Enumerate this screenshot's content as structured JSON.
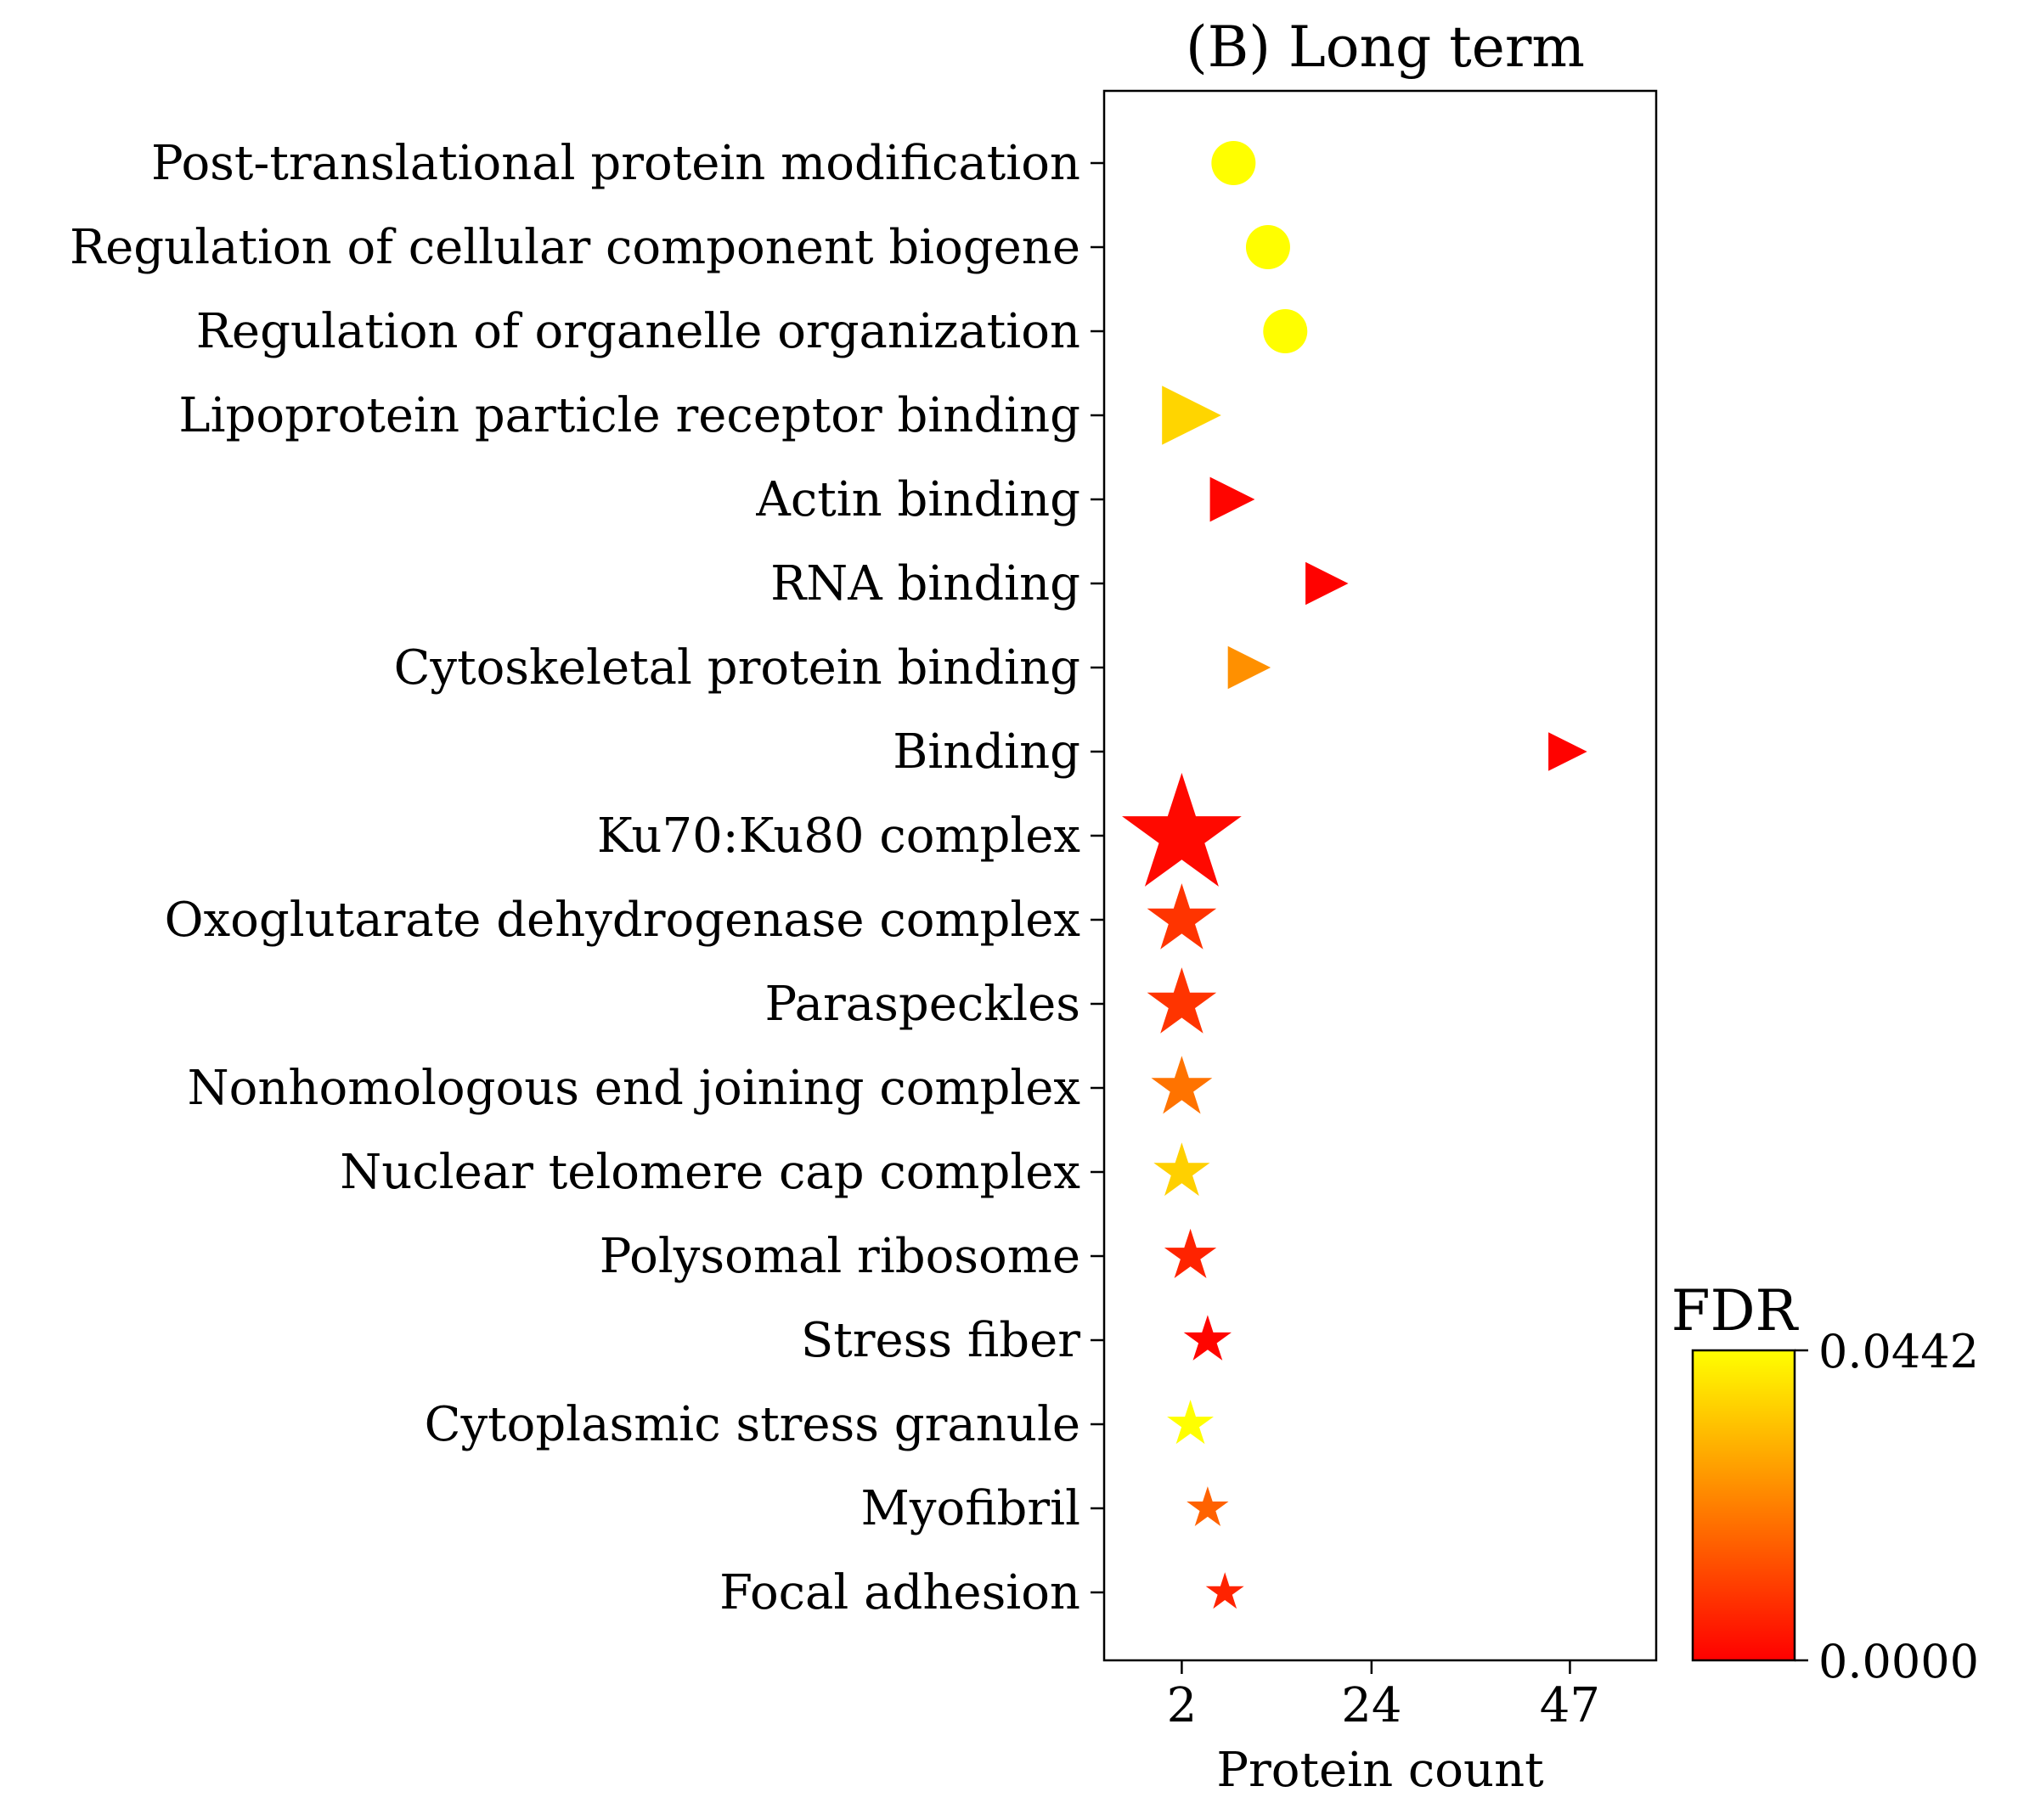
{
  "chart_data": {
    "type": "scatter",
    "title": "(B) Long term",
    "xlabel": "Protein count",
    "ylabel": "",
    "xticks": [
      2,
      24,
      47
    ],
    "xlim": [
      -7,
      57
    ],
    "grid": false,
    "categories": [
      "Post-translational protein modification",
      "Regulation of cellular component biogene",
      "Regulation of organelle organization",
      "Lipoprotein particle receptor binding",
      "Actin binding",
      "RNA binding",
      "Cytoskeletal protein binding",
      "Binding",
      "Ku70:Ku80 complex",
      "Oxoglutarate dehydrogenase complex",
      "Paraspeckles",
      "Nonhomologous end joining complex",
      "Nuclear telomere cap complex",
      "Polysomal ribosome",
      "Stress fiber",
      "Cytoplasmic stress granule",
      "Myofibril",
      "Focal adhesion"
    ],
    "points": [
      {
        "category": "Post-translational protein modification",
        "x": 8,
        "fdr": 0.0442,
        "marker": "circle",
        "size": 1.0
      },
      {
        "category": "Regulation of cellular component biogene",
        "x": 12,
        "fdr": 0.044,
        "marker": "circle",
        "size": 1.0
      },
      {
        "category": "Regulation of organelle organization",
        "x": 14,
        "fdr": 0.044,
        "marker": "circle",
        "size": 1.0
      },
      {
        "category": "Lipoprotein particle receptor binding",
        "x": 2,
        "fdr": 0.037,
        "marker": "triangle-right",
        "size": 1.45
      },
      {
        "category": "Actin binding",
        "x": 7,
        "fdr": 0.0008,
        "marker": "triangle-right",
        "size": 1.1
      },
      {
        "category": "RNA binding",
        "x": 18,
        "fdr": 0.0004,
        "marker": "triangle-right",
        "size": 1.05
      },
      {
        "category": "Cytoskeletal protein binding",
        "x": 9,
        "fdr": 0.025,
        "marker": "triangle-right",
        "size": 1.05
      },
      {
        "category": "Binding",
        "x": 46,
        "fdr": 0.0004,
        "marker": "triangle-right",
        "size": 0.95
      },
      {
        "category": "Ku70:Ku80 complex",
        "x": 2,
        "fdr": 0.0015,
        "marker": "star",
        "size": 2.0
      },
      {
        "category": "Oxoglutarate dehydrogenase complex",
        "x": 2,
        "fdr": 0.009,
        "marker": "star",
        "size": 1.16
      },
      {
        "category": "Paraspeckles",
        "x": 2,
        "fdr": 0.009,
        "marker": "star",
        "size": 1.16
      },
      {
        "category": "Nonhomologous end joining complex",
        "x": 2,
        "fdr": 0.02,
        "marker": "star",
        "size": 1.02
      },
      {
        "category": "Nuclear telomere cap complex",
        "x": 2,
        "fdr": 0.036,
        "marker": "star",
        "size": 0.94
      },
      {
        "category": "Polysomal ribosome",
        "x": 3,
        "fdr": 0.006,
        "marker": "star",
        "size": 0.87
      },
      {
        "category": "Stress fiber",
        "x": 5,
        "fdr": 0.0008,
        "marker": "star",
        "size": 0.8
      },
      {
        "category": "Cytoplasmic stress granule",
        "x": 3,
        "fdr": 0.0442,
        "marker": "star",
        "size": 0.78
      },
      {
        "category": "Myofibril",
        "x": 5,
        "fdr": 0.017,
        "marker": "star",
        "size": 0.7
      },
      {
        "category": "Focal adhesion",
        "x": 7,
        "fdr": 0.006,
        "marker": "star",
        "size": 0.64
      }
    ],
    "colorbar": {
      "title": "FDR",
      "min": 0.0,
      "max": 0.0442,
      "min_label": "0.0000",
      "max_label": "0.0442",
      "colormap": "autumn",
      "color_low": "#ff0000",
      "color_high": "#ffff00"
    }
  }
}
